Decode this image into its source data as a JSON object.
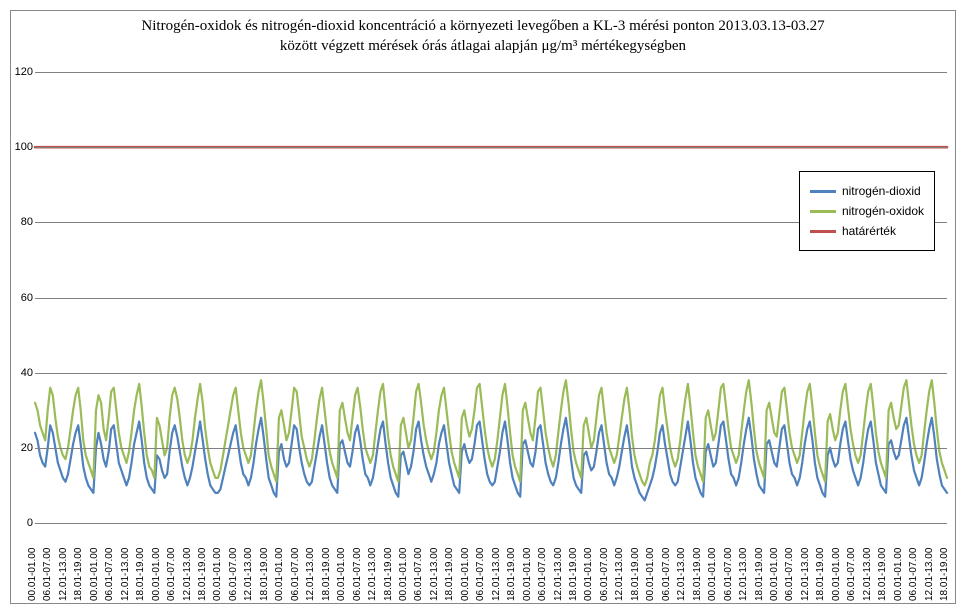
{
  "chart": {
    "type": "line",
    "title_line1": "Nitrogén-oxidok és nitrogén-dioxid koncentráció a környezeti levegőben  a KL-3 mérési ponton 2013.03.13-03.27",
    "title_line2": "között végzett mérések órás átlagai alapján μg/m³ mértékegységben",
    "title_fontsize": 15,
    "background_color": "#ffffff",
    "border_color": "#888888",
    "grid_color": "#808080",
    "ylim": [
      0,
      120
    ],
    "ytick_step": 20,
    "yticks": [
      0,
      20,
      40,
      60,
      80,
      100,
      120
    ],
    "series": [
      {
        "key": "no2",
        "label": "nitrogén-dioxid",
        "color": "#4f81bd",
        "width": 2.2
      },
      {
        "key": "nox",
        "label": "nitrogén-oxidok",
        "color": "#9bbb59",
        "width": 2.2
      },
      {
        "key": "limit",
        "label": "határérték",
        "color": "#c0504d",
        "width": 2.6,
        "constant": 100
      }
    ],
    "legend": {
      "position": "right-inside",
      "border_color": "#000000",
      "fontsize": 12
    },
    "x_labels": [
      "00.01-01.00",
      "06.01-07.00",
      "12.01-13.00",
      "18.01-19.00",
      "00.01-01.00",
      "06.01-07.00",
      "12.01-13.00",
      "18.01-19.00",
      "00.01-01.00",
      "06.01-07.00",
      "12.01-13.00",
      "18.01-19.00",
      "00.01-01.00",
      "06.01-07.00",
      "12.01-13.00",
      "18.01-19.00",
      "00.01-01.00",
      "06.01-07.00",
      "12.01-13.00",
      "18.01-19.00",
      "00.01-01.00",
      "06.01-07.00",
      "12.01-13.00",
      "18.01-19.00",
      "00.01-01.00",
      "06.01-07.00",
      "12.01-13.00",
      "18.01-19.00",
      "00.01-01.00",
      "06.01-07.00",
      "12.01-13.00",
      "18.01-19.00",
      "00.01-01.00",
      "06.01-07.00",
      "12.01-13.00",
      "18.01-19.00",
      "00.01-01.00",
      "06.01-07.00",
      "12.01-13.00",
      "18.01-19.00",
      "00.01-01.00",
      "06.01-07.00",
      "12.01-13.00",
      "18.01-19.00",
      "00.01-01.00",
      "06.01-07.00",
      "12.01-13.00",
      "18.01-19.00",
      "00.01-01.00",
      "06.01-07.00",
      "12.01-13.00",
      "18.01-19.00",
      "00.01-01.00",
      "06.01-07.00",
      "12.01-13.00",
      "18.01-19.00",
      "00.01-01.00",
      "06.01-07.00",
      "12.01-13.00",
      "18.01-19.00"
    ],
    "x_label_fontsize": 10,
    "n_points": 360,
    "data": {
      "nox": [
        32,
        30,
        26,
        24,
        22,
        30,
        36,
        34,
        28,
        23,
        20,
        18,
        17,
        20,
        25,
        30,
        34,
        36,
        30,
        22,
        18,
        16,
        14,
        12,
        30,
        34,
        32,
        25,
        22,
        28,
        35,
        36,
        30,
        24,
        20,
        18,
        16,
        19,
        24,
        30,
        34,
        37,
        31,
        24,
        18,
        15,
        14,
        12,
        28,
        26,
        22,
        18,
        20,
        28,
        34,
        36,
        33,
        28,
        22,
        18,
        16,
        18,
        22,
        28,
        33,
        37,
        32,
        25,
        20,
        16,
        14,
        12,
        12,
        14,
        18,
        22,
        26,
        30,
        34,
        36,
        30,
        24,
        20,
        18,
        16,
        18,
        24,
        30,
        35,
        38,
        32,
        25,
        18,
        15,
        13,
        11,
        28,
        30,
        26,
        22,
        24,
        30,
        36,
        35,
        29,
        23,
        20,
        17,
        15,
        17,
        22,
        28,
        33,
        36,
        30,
        24,
        19,
        16,
        14,
        12,
        30,
        32,
        28,
        24,
        22,
        28,
        34,
        36,
        31,
        25,
        20,
        18,
        16,
        18,
        24,
        30,
        35,
        37,
        30,
        23,
        18,
        15,
        13,
        11,
        26,
        28,
        24,
        20,
        22,
        28,
        35,
        37,
        32,
        26,
        22,
        19,
        17,
        19,
        24,
        30,
        34,
        36,
        30,
        24,
        19,
        16,
        14,
        12,
        28,
        30,
        26,
        23,
        25,
        30,
        36,
        37,
        31,
        25,
        20,
        17,
        15,
        17,
        22,
        28,
        34,
        37,
        31,
        24,
        18,
        15,
        13,
        11,
        30,
        32,
        28,
        24,
        22,
        28,
        35,
        36,
        30,
        24,
        20,
        17,
        15,
        18,
        24,
        30,
        35,
        38,
        32,
        25,
        19,
        16,
        14,
        12,
        26,
        28,
        24,
        20,
        22,
        28,
        34,
        36,
        30,
        24,
        20,
        18,
        16,
        18,
        23,
        28,
        33,
        36,
        30,
        23,
        18,
        15,
        13,
        11,
        10,
        12,
        16,
        18,
        22,
        28,
        34,
        36,
        30,
        25,
        20,
        17,
        15,
        17,
        22,
        28,
        33,
        37,
        31,
        24,
        18,
        15,
        13,
        11,
        28,
        30,
        26,
        22,
        24,
        30,
        36,
        37,
        31,
        25,
        20,
        18,
        16,
        18,
        24,
        30,
        35,
        38,
        32,
        25,
        19,
        16,
        14,
        12,
        30,
        32,
        28,
        24,
        23,
        29,
        35,
        36,
        30,
        24,
        20,
        18,
        16,
        18,
        24,
        30,
        35,
        37,
        31,
        24,
        18,
        15,
        13,
        11,
        27,
        29,
        25,
        22,
        24,
        30,
        35,
        37,
        31,
        25,
        21,
        18,
        16,
        18,
        24,
        30,
        35,
        37,
        31,
        24,
        19,
        16,
        14,
        12,
        30,
        32,
        28,
        25,
        26,
        31,
        36,
        38,
        32,
        26,
        21,
        18,
        16,
        18,
        24,
        30,
        35,
        38,
        32,
        25,
        19,
        16,
        14,
        12
      ],
      "no2": [
        24,
        22,
        18,
        16,
        15,
        20,
        26,
        24,
        20,
        16,
        14,
        12,
        11,
        13,
        17,
        21,
        24,
        26,
        21,
        15,
        12,
        10,
        9,
        8,
        20,
        24,
        21,
        17,
        15,
        19,
        25,
        26,
        21,
        16,
        14,
        12,
        10,
        12,
        16,
        21,
        24,
        27,
        22,
        16,
        12,
        10,
        9,
        8,
        18,
        17,
        14,
        12,
        13,
        19,
        24,
        26,
        23,
        19,
        15,
        12,
        10,
        12,
        15,
        19,
        23,
        27,
        22,
        17,
        13,
        10,
        9,
        8,
        8,
        9,
        12,
        15,
        18,
        21,
        24,
        26,
        21,
        16,
        13,
        12,
        10,
        12,
        16,
        21,
        25,
        28,
        23,
        17,
        12,
        10,
        8,
        7,
        19,
        21,
        17,
        15,
        16,
        21,
        26,
        25,
        20,
        16,
        13,
        11,
        10,
        11,
        15,
        19,
        23,
        26,
        21,
        16,
        12,
        10,
        9,
        8,
        21,
        22,
        19,
        16,
        15,
        19,
        24,
        26,
        22,
        17,
        13,
        12,
        10,
        12,
        16,
        21,
        25,
        27,
        21,
        16,
        12,
        10,
        8,
        7,
        18,
        19,
        16,
        13,
        15,
        19,
        25,
        27,
        22,
        18,
        15,
        13,
        11,
        13,
        16,
        21,
        24,
        26,
        21,
        16,
        13,
        10,
        9,
        8,
        19,
        21,
        18,
        16,
        17,
        21,
        26,
        27,
        22,
        17,
        13,
        11,
        10,
        11,
        15,
        19,
        24,
        27,
        22,
        16,
        12,
        10,
        8,
        7,
        21,
        22,
        19,
        16,
        15,
        19,
        25,
        26,
        21,
        16,
        13,
        11,
        10,
        12,
        16,
        21,
        25,
        28,
        23,
        17,
        12,
        10,
        9,
        8,
        18,
        19,
        16,
        14,
        15,
        19,
        24,
        26,
        21,
        16,
        13,
        12,
        10,
        12,
        15,
        19,
        23,
        26,
        21,
        15,
        12,
        10,
        8,
        7,
        6,
        8,
        10,
        12,
        15,
        19,
        24,
        26,
        21,
        17,
        13,
        11,
        10,
        11,
        15,
        19,
        23,
        27,
        22,
        16,
        12,
        10,
        8,
        7,
        19,
        21,
        18,
        15,
        16,
        21,
        26,
        27,
        22,
        17,
        13,
        12,
        10,
        12,
        16,
        21,
        25,
        28,
        23,
        17,
        13,
        10,
        9,
        8,
        21,
        22,
        19,
        16,
        15,
        20,
        25,
        26,
        21,
        16,
        13,
        12,
        10,
        12,
        16,
        21,
        25,
        27,
        22,
        16,
        12,
        10,
        8,
        7,
        18,
        20,
        17,
        15,
        16,
        21,
        25,
        27,
        22,
        17,
        14,
        12,
        10,
        12,
        16,
        21,
        25,
        27,
        22,
        16,
        13,
        10,
        9,
        8,
        21,
        22,
        19,
        17,
        18,
        22,
        26,
        28,
        23,
        18,
        14,
        12,
        10,
        12,
        16,
        21,
        25,
        28,
        23,
        17,
        13,
        10,
        9,
        8
      ]
    }
  }
}
